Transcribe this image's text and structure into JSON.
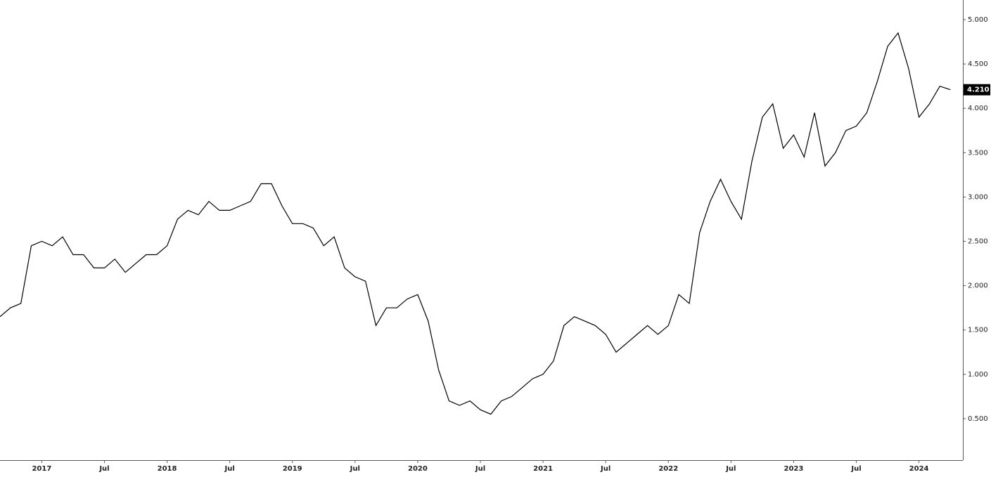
{
  "chart_data": {
    "type": "line",
    "x": [
      "2016-09",
      "2016-10",
      "2016-11",
      "2016-12",
      "2017-01",
      "2017-02",
      "2017-03",
      "2017-04",
      "2017-05",
      "2017-06",
      "2017-07",
      "2017-08",
      "2017-09",
      "2017-10",
      "2017-11",
      "2017-12",
      "2018-01",
      "2018-02",
      "2018-03",
      "2018-04",
      "2018-05",
      "2018-06",
      "2018-07",
      "2018-08",
      "2018-09",
      "2018-10",
      "2018-11",
      "2018-12",
      "2019-01",
      "2019-02",
      "2019-03",
      "2019-04",
      "2019-05",
      "2019-06",
      "2019-07",
      "2019-08",
      "2019-09",
      "2019-10",
      "2019-11",
      "2019-12",
      "2020-01",
      "2020-02",
      "2020-03",
      "2020-04",
      "2020-05",
      "2020-06",
      "2020-07",
      "2020-08",
      "2020-09",
      "2020-10",
      "2020-11",
      "2020-12",
      "2021-01",
      "2021-02",
      "2021-03",
      "2021-04",
      "2021-05",
      "2021-06",
      "2021-07",
      "2021-08",
      "2021-09",
      "2021-10",
      "2021-11",
      "2021-12",
      "2022-01",
      "2022-02",
      "2022-03",
      "2022-04",
      "2022-05",
      "2022-06",
      "2022-07",
      "2022-08",
      "2022-09",
      "2022-10",
      "2022-11",
      "2022-12",
      "2023-01",
      "2023-02",
      "2023-03",
      "2023-04",
      "2023-05",
      "2023-06",
      "2023-07",
      "2023-08",
      "2023-09",
      "2023-10",
      "2023-11",
      "2023-12",
      "2024-01",
      "2024-02",
      "2024-03",
      "2024-04"
    ],
    "values": [
      1.65,
      1.75,
      1.8,
      2.45,
      2.5,
      2.45,
      2.55,
      2.35,
      2.35,
      2.2,
      2.2,
      2.3,
      2.15,
      2.25,
      2.35,
      2.35,
      2.45,
      2.75,
      2.85,
      2.8,
      2.95,
      2.85,
      2.85,
      2.9,
      2.95,
      3.15,
      3.15,
      2.9,
      2.7,
      2.7,
      2.65,
      2.45,
      2.55,
      2.2,
      2.1,
      2.05,
      1.55,
      1.75,
      1.75,
      1.85,
      1.9,
      1.6,
      1.05,
      0.7,
      0.65,
      0.7,
      0.6,
      0.55,
      0.7,
      0.75,
      0.85,
      0.95,
      1.0,
      1.15,
      1.55,
      1.65,
      1.6,
      1.55,
      1.45,
      1.25,
      1.35,
      1.45,
      1.55,
      1.45,
      1.55,
      1.9,
      1.8,
      2.6,
      2.95,
      3.2,
      2.95,
      2.75,
      3.4,
      3.9,
      4.05,
      3.55,
      3.7,
      3.45,
      3.95,
      3.35,
      3.5,
      3.75,
      3.8,
      3.95,
      4.3,
      4.7,
      4.85,
      4.45,
      3.9,
      4.05,
      4.25,
      4.21
    ],
    "color": "#000000",
    "last_value": {
      "value": 4.21,
      "label": "4.210"
    },
    "xlim": [
      "2016-09",
      "2024-05"
    ],
    "xticks": [
      {
        "value": "2017-01",
        "label": "2017"
      },
      {
        "value": "2017-07",
        "label": "Jul"
      },
      {
        "value": "2018-01",
        "label": "2018"
      },
      {
        "value": "2018-07",
        "label": "Jul"
      },
      {
        "value": "2019-01",
        "label": "2019"
      },
      {
        "value": "2019-07",
        "label": "Jul"
      },
      {
        "value": "2020-01",
        "label": "2020"
      },
      {
        "value": "2020-07",
        "label": "Jul"
      },
      {
        "value": "2021-01",
        "label": "2021"
      },
      {
        "value": "2021-07",
        "label": "Jul"
      },
      {
        "value": "2022-01",
        "label": "2022"
      },
      {
        "value": "2022-07",
        "label": "Jul"
      },
      {
        "value": "2023-01",
        "label": "2023"
      },
      {
        "value": "2023-07",
        "label": "Jul"
      },
      {
        "value": "2024-01",
        "label": "2024"
      }
    ],
    "ylim": [
      0.032,
      5.222
    ],
    "yticks": [
      {
        "value": 0.5,
        "label": "0.500"
      },
      {
        "value": 1.0,
        "label": "1.000"
      },
      {
        "value": 1.5,
        "label": "1.500"
      },
      {
        "value": 2.0,
        "label": "2.000"
      },
      {
        "value": 2.5,
        "label": "2.500"
      },
      {
        "value": 3.0,
        "label": "3.000"
      },
      {
        "value": 3.5,
        "label": "3.500"
      },
      {
        "value": 4.0,
        "label": "4.000"
      },
      {
        "value": 4.5,
        "label": "4.500"
      },
      {
        "value": 5.0,
        "label": "5.000"
      }
    ],
    "grid": false
  }
}
